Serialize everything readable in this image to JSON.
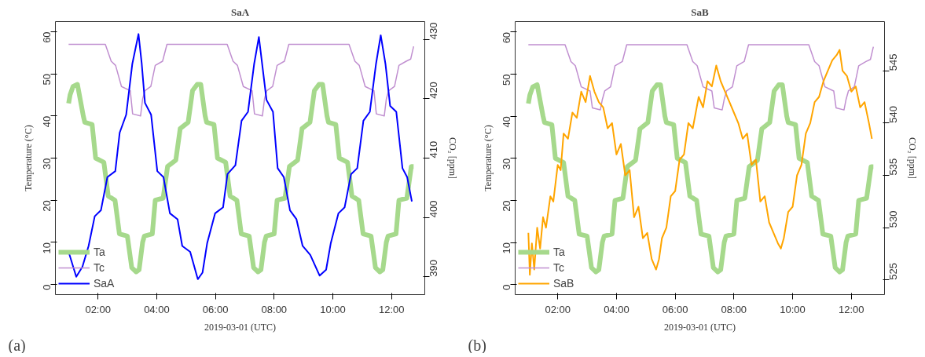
{
  "chart_data": [
    {
      "type": "line",
      "title": "SaA",
      "xlabel": "2019-03-01 (UTC)",
      "ylabel": "Temperature (°C)",
      "y2label": "CO₂ [ppm]",
      "annotations": [
        "(a)"
      ],
      "legend": "bottom left",
      "grid": false,
      "xlim": [
        0.55,
        13.13
      ],
      "xticks": [
        {
          "value": 2,
          "label": "02:00"
        },
        {
          "value": 4,
          "label": "04:00"
        },
        {
          "value": 6,
          "label": "06:00"
        },
        {
          "value": 8,
          "label": "08:00"
        },
        {
          "value": 10,
          "label": "10:00"
        },
        {
          "value": 12,
          "label": "12:00"
        }
      ],
      "ylim": [
        -2.4,
        62.4
      ],
      "yticks": [
        0,
        10,
        20,
        30,
        40,
        50,
        60
      ],
      "y2lim": [
        387,
        433
      ],
      "y2ticks": [
        390,
        400,
        410,
        420,
        430
      ],
      "series": [
        {
          "name": "Ta",
          "color": "#a6d98c",
          "x": [
            1.0,
            1.05,
            1.15,
            1.3,
            1.5,
            1.55,
            1.8,
            1.92,
            2.2,
            2.35,
            2.58,
            2.73,
            3.0,
            3.15,
            3.3,
            3.4,
            3.52,
            3.58,
            3.85,
            3.95,
            4.22,
            4.37,
            4.65,
            4.8,
            5.07,
            5.22,
            5.38,
            5.5,
            5.65,
            5.7,
            5.95,
            6.07,
            6.35,
            6.5,
            6.73,
            6.88,
            7.15,
            7.3,
            7.45,
            7.55,
            7.67,
            7.73,
            8.0,
            8.1,
            8.37,
            8.52,
            8.8,
            8.95,
            9.22,
            9.37,
            9.53,
            9.65,
            9.8,
            9.85,
            10.1,
            10.22,
            10.5,
            10.65,
            10.88,
            11.03,
            11.3,
            11.45,
            11.6,
            11.7,
            11.82,
            11.88,
            12.15,
            12.25,
            12.52,
            12.67,
            12.75
          ],
          "values": [
            43,
            45,
            47,
            47.5,
            40,
            38.5,
            38,
            30,
            29,
            21,
            20,
            12,
            11.5,
            4,
            3,
            3.5,
            10,
            11.5,
            12,
            20,
            20.5,
            28,
            29.5,
            37,
            38.5,
            46,
            47.5,
            47.5,
            40,
            38.5,
            38,
            30,
            29,
            21,
            20,
            12,
            11.5,
            4,
            3,
            3.5,
            10,
            11.5,
            12,
            20,
            20.5,
            28,
            29.5,
            37,
            38.5,
            46,
            47.5,
            47.5,
            40,
            38.5,
            38,
            30,
            29,
            21,
            20,
            12,
            11.5,
            4,
            3,
            3.5,
            10,
            11.5,
            12,
            20,
            20.5,
            28,
            28
          ]
        },
        {
          "name": "Tc",
          "color": "#c08fd0",
          "x": [
            1.0,
            2.25,
            2.45,
            2.6,
            2.8,
            3.1,
            3.18,
            3.45,
            3.52,
            3.6,
            3.8,
            3.95,
            4.2,
            4.35,
            6.4,
            6.6,
            6.75,
            6.95,
            7.25,
            7.33,
            7.6,
            7.67,
            7.75,
            7.95,
            8.1,
            8.35,
            8.5,
            10.55,
            10.75,
            10.9,
            11.1,
            11.4,
            11.48,
            11.75,
            11.82,
            11.9,
            12.1,
            12.25,
            12.5,
            12.65,
            12.75
          ],
          "values": [
            57,
            57,
            53,
            52,
            47,
            46,
            40.5,
            40,
            44,
            46,
            47,
            52,
            53,
            57,
            57,
            53,
            52,
            47,
            46,
            40.5,
            40,
            44,
            46,
            47,
            52,
            53,
            57,
            57,
            53,
            52,
            47,
            46,
            40.5,
            40,
            44,
            46,
            47,
            52,
            53,
            53.5,
            56.5
          ]
        },
        {
          "name": "SaA",
          "color": "#0000ff",
          "axis": "y2",
          "x": [
            1.0,
            1.26,
            1.47,
            1.68,
            1.89,
            2.1,
            2.32,
            2.59,
            2.74,
            2.96,
            3.17,
            3.38,
            3.49,
            3.6,
            3.81,
            4.02,
            4.23,
            4.45,
            4.71,
            4.87,
            5.14,
            5.4,
            5.56,
            5.72,
            5.99,
            6.26,
            6.41,
            6.68,
            6.89,
            7.11,
            7.32,
            7.48,
            7.59,
            7.74,
            7.96,
            8.12,
            8.33,
            8.54,
            8.76,
            8.97,
            9.23,
            9.55,
            9.77,
            9.93,
            10.19,
            10.4,
            10.62,
            10.83,
            11.04,
            11.26,
            11.47,
            11.63,
            11.79,
            11.95,
            12.16,
            12.37,
            12.53,
            12.69
          ],
          "values": [
            394.2,
            390,
            391.7,
            395.2,
            400.2,
            401.2,
            406.8,
            407.8,
            414.3,
            417.3,
            425.9,
            430.9,
            425.9,
            419.3,
            417.3,
            407.8,
            406.8,
            400.7,
            399.7,
            395.2,
            394.2,
            389.6,
            390.7,
            395.7,
            400.7,
            401.7,
            407.3,
            408.8,
            416.3,
            417.8,
            425.9,
            430.4,
            425.9,
            419.8,
            417.8,
            408.3,
            406.8,
            401.2,
            399.7,
            395.2,
            393.7,
            390.2,
            391.2,
            395.7,
            400.7,
            401.7,
            407.3,
            408.3,
            416.3,
            417.8,
            425.9,
            430.7,
            425.9,
            418.8,
            417.8,
            408.3,
            406.8,
            402.7
          ]
        }
      ]
    },
    {
      "type": "line",
      "title": "SaB",
      "xlabel": "2019-03-01 (UTC)",
      "ylabel": "Temperature (°C)",
      "y2label": "CO₂ [ppm]",
      "annotations": [
        "(b)"
      ],
      "legend": "bottom left",
      "grid": false,
      "xlim": [
        0.55,
        13.13
      ],
      "xticks": [
        {
          "value": 2,
          "label": "02:00"
        },
        {
          "value": 4,
          "label": "04:00"
        },
        {
          "value": 6,
          "label": "06:00"
        },
        {
          "value": 8,
          "label": "08:00"
        },
        {
          "value": 10,
          "label": "10:00"
        },
        {
          "value": 12,
          "label": "12:00"
        }
      ],
      "ylim": [
        -2.4,
        62.5
      ],
      "yticks": [
        0,
        10,
        20,
        30,
        40,
        50,
        60
      ],
      "y2lim": [
        523.6,
        549.7
      ],
      "y2ticks": [
        525,
        530,
        535,
        540,
        545
      ],
      "series": [
        {
          "name": "Ta",
          "color": "#a6d98c",
          "x": [
            1.0,
            1.05,
            1.15,
            1.3,
            1.5,
            1.55,
            1.8,
            1.92,
            2.2,
            2.35,
            2.58,
            2.73,
            3.0,
            3.15,
            3.3,
            3.4,
            3.52,
            3.58,
            3.85,
            3.95,
            4.22,
            4.37,
            4.65,
            4.8,
            5.07,
            5.22,
            5.38,
            5.5,
            5.65,
            5.7,
            5.95,
            6.07,
            6.35,
            6.5,
            6.73,
            6.88,
            7.15,
            7.3,
            7.45,
            7.55,
            7.67,
            7.73,
            8.0,
            8.1,
            8.37,
            8.52,
            8.8,
            8.95,
            9.22,
            9.37,
            9.53,
            9.65,
            9.8,
            9.85,
            10.1,
            10.22,
            10.5,
            10.65,
            10.88,
            11.03,
            11.3,
            11.45,
            11.6,
            11.7,
            11.82,
            11.88,
            12.15,
            12.25,
            12.52,
            12.67,
            12.75
          ],
          "values": [
            43,
            45,
            47,
            47.5,
            40,
            38.5,
            38,
            30,
            29,
            21,
            20,
            12,
            11.5,
            4,
            3,
            3.5,
            10,
            11.5,
            12,
            20,
            20.5,
            28,
            29.5,
            37,
            38.5,
            46,
            47.5,
            47.5,
            40,
            38.5,
            38,
            30,
            29,
            21,
            20,
            12,
            11.5,
            4,
            3,
            3.5,
            10,
            11.5,
            12,
            20,
            20.5,
            28,
            29.5,
            37,
            38.5,
            46,
            47.5,
            47.5,
            40,
            38.5,
            38,
            30,
            29,
            21,
            20,
            12,
            11.5,
            4,
            3,
            3.5,
            10,
            11.5,
            12,
            20,
            20.5,
            28,
            28
          ]
        },
        {
          "name": "Tc",
          "color": "#c08fd0",
          "x": [
            1.0,
            2.25,
            2.45,
            2.6,
            2.8,
            3.1,
            3.18,
            3.45,
            3.52,
            3.6,
            3.8,
            3.95,
            4.2,
            4.35,
            6.4,
            6.6,
            6.75,
            6.95,
            7.25,
            7.33,
            7.6,
            7.67,
            7.75,
            7.95,
            8.1,
            8.35,
            8.5,
            10.55,
            10.75,
            10.9,
            11.1,
            11.4,
            11.48,
            11.75,
            11.82,
            11.9,
            12.1,
            12.25,
            12.5,
            12.65,
            12.75
          ],
          "values": [
            57,
            57,
            53,
            52,
            47,
            46,
            42,
            41.5,
            44,
            46,
            47,
            52,
            53,
            57,
            57,
            53,
            52,
            47,
            46,
            42,
            41.5,
            44,
            46,
            47,
            52,
            53,
            57,
            57,
            53,
            52,
            47,
            46,
            42,
            41.5,
            44,
            46,
            47,
            52,
            53,
            53.5,
            56.5
          ]
        },
        {
          "name": "SaB",
          "color": "#ffa500",
          "axis": "y2",
          "x": [
            1.0,
            1.05,
            1.12,
            1.2,
            1.3,
            1.4,
            1.5,
            1.6,
            1.75,
            1.85,
            2.0,
            2.1,
            2.2,
            2.35,
            2.5,
            2.65,
            2.8,
            2.95,
            3.1,
            3.25,
            3.4,
            3.55,
            3.7,
            3.85,
            4.0,
            4.15,
            4.3,
            4.45,
            4.6,
            4.75,
            4.9,
            5.05,
            5.2,
            5.35,
            5.45,
            5.55,
            5.7,
            5.85,
            6.0,
            6.15,
            6.3,
            6.45,
            6.6,
            6.8,
            6.95,
            7.1,
            7.25,
            7.4,
            7.55,
            7.7,
            7.85,
            8.0,
            8.15,
            8.3,
            8.45,
            8.6,
            8.75,
            8.9,
            9.05,
            9.2,
            9.35,
            9.5,
            9.6,
            9.7,
            9.85,
            10.0,
            10.15,
            10.3,
            10.45,
            10.6,
            10.75,
            10.9,
            11.05,
            11.2,
            11.35,
            11.5,
            11.6,
            11.7,
            11.85,
            12.0,
            12.15,
            12.3,
            12.45,
            12.6,
            12.7
          ],
          "values": [
            529.5,
            525.5,
            528.5,
            526,
            530,
            528,
            531,
            530,
            533,
            532.5,
            536,
            535.5,
            539,
            538.5,
            541,
            540.5,
            543,
            542,
            544.5,
            543,
            542,
            541.5,
            539.5,
            540,
            537,
            538,
            535,
            535.5,
            531,
            532,
            529,
            529.5,
            527,
            526,
            527,
            529,
            530,
            533,
            533.5,
            536.5,
            537,
            540,
            539.5,
            542.5,
            541.5,
            544,
            543.5,
            545.5,
            544,
            543,
            542,
            541,
            540,
            538.5,
            539,
            536,
            536.5,
            532.5,
            533,
            530.5,
            529.5,
            528.5,
            528,
            529,
            531.5,
            532,
            535,
            536,
            539,
            540,
            542,
            542.5,
            544,
            545,
            546,
            546.5,
            547,
            545,
            544.5,
            543,
            543.5,
            541.5,
            542,
            540,
            538.5
          ]
        }
      ]
    }
  ]
}
